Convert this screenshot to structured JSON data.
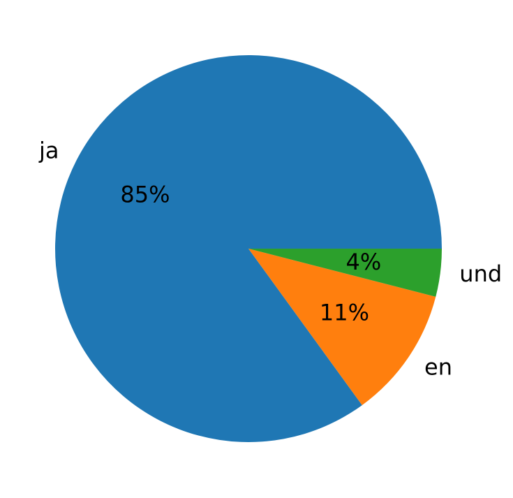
{
  "chart_data": {
    "type": "pie",
    "categories": [
      "ja",
      "en",
      "und"
    ],
    "values": [
      85,
      11,
      4
    ],
    "value_labels": [
      "85%",
      "11%",
      "4%"
    ],
    "colors": [
      "#1f77b4",
      "#ff7f0e",
      "#2ca02c"
    ]
  }
}
